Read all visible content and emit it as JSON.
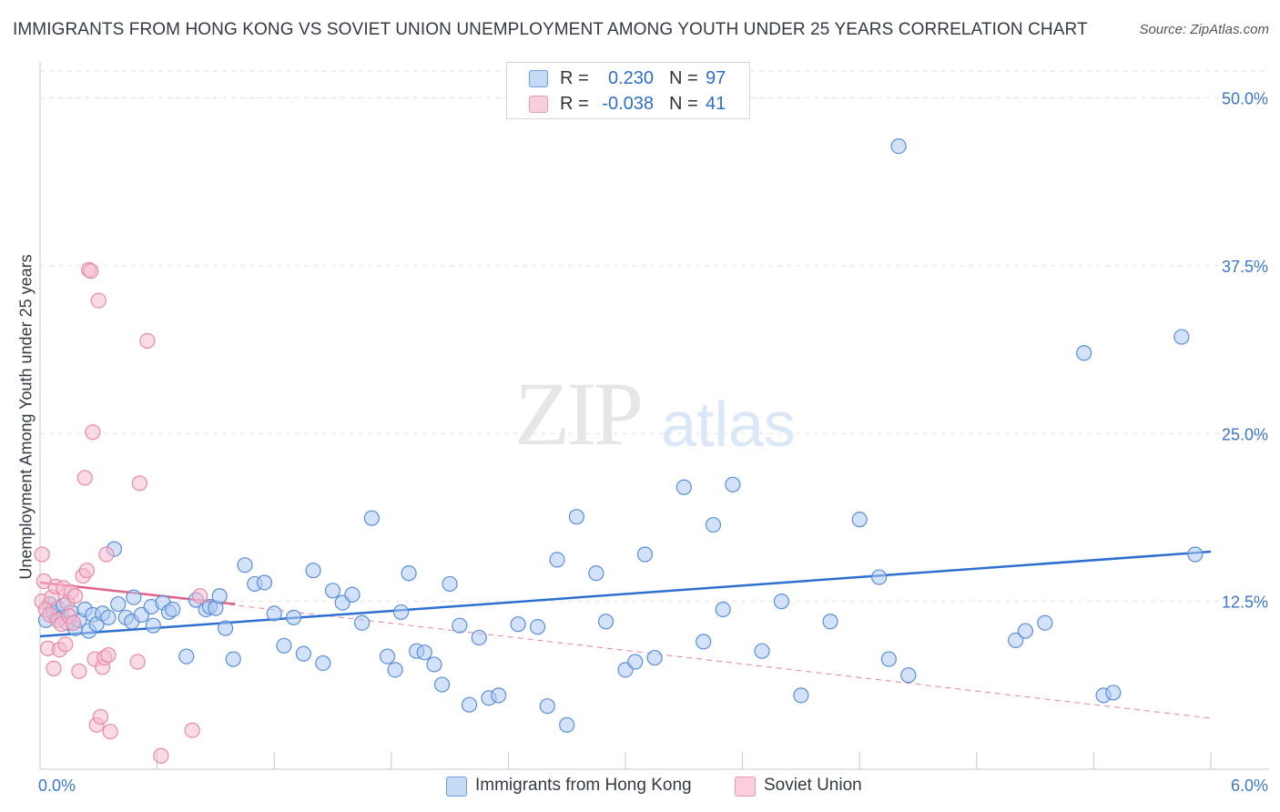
{
  "header": {
    "title": "IMMIGRANTS FROM HONG KONG VS SOVIET UNION UNEMPLOYMENT AMONG YOUTH UNDER 25 YEARS CORRELATION CHART",
    "source": "Source: ZipAtlas.com"
  },
  "watermark": {
    "zip": "ZIP",
    "atlas": "atlas"
  },
  "legend": {
    "r_label": "R =",
    "n_label": "N =",
    "rows": [
      {
        "name": "Immigrants from Hong Kong",
        "r": "0.230",
        "n": "97"
      },
      {
        "name": "Soviet Union",
        "r": "-0.038",
        "n": "41"
      }
    ]
  },
  "colors": {
    "blue_fill": "#aecbf2",
    "blue_stroke": "#5b8fd8",
    "blue_line": "#2d6fcf",
    "pink_fill": "#f6bccd",
    "pink_stroke": "#e88aa8",
    "pink_line": "#e0628a"
  },
  "chart_data": {
    "type": "scatter",
    "title": "IMMIGRANTS FROM HONG KONG VS SOVIET UNION UNEMPLOYMENT AMONG YOUTH UNDER 25 YEARS CORRELATION CHART",
    "xlabel": "",
    "ylabel": "Unemployment Among Youth under 25 years",
    "xlim": [
      0,
      6
    ],
    "ylim": [
      0,
      52
    ],
    "x_tick_labels": [
      "0.0%",
      "6.0%"
    ],
    "y_ticks": [
      12.5,
      25,
      37.5,
      50
    ],
    "y_tick_labels": [
      "12.5%",
      "25.0%",
      "37.5%",
      "50.0%"
    ],
    "grid": true,
    "series": [
      {
        "name": "Immigrants from Hong Kong",
        "trend": {
          "x": [
            0,
            6
          ],
          "y": [
            9.9,
            16.2
          ],
          "style": "solid"
        },
        "points": [
          [
            0.03,
            11.1
          ],
          [
            0.05,
            12.3
          ],
          [
            0.07,
            11.6
          ],
          [
            0.09,
            12.0
          ],
          [
            0.11,
            11.3
          ],
          [
            0.12,
            12.2
          ],
          [
            0.14,
            10.9
          ],
          [
            0.16,
            11.7
          ],
          [
            0.18,
            10.5
          ],
          [
            0.2,
            11.1
          ],
          [
            0.23,
            11.9
          ],
          [
            0.25,
            10.3
          ],
          [
            0.27,
            11.5
          ],
          [
            0.29,
            10.8
          ],
          [
            0.32,
            11.6
          ],
          [
            0.35,
            11.3
          ],
          [
            0.38,
            16.4
          ],
          [
            0.4,
            12.3
          ],
          [
            0.44,
            11.3
          ],
          [
            0.47,
            11.0
          ],
          [
            0.48,
            12.8
          ],
          [
            0.52,
            11.5
          ],
          [
            0.57,
            12.1
          ],
          [
            0.58,
            10.7
          ],
          [
            0.63,
            12.4
          ],
          [
            0.66,
            11.7
          ],
          [
            0.68,
            11.9
          ],
          [
            0.75,
            8.4
          ],
          [
            0.8,
            12.6
          ],
          [
            0.85,
            11.9
          ],
          [
            0.87,
            12.1
          ],
          [
            0.9,
            12.0
          ],
          [
            0.92,
            12.9
          ],
          [
            0.95,
            10.5
          ],
          [
            0.99,
            8.2
          ],
          [
            1.05,
            15.2
          ],
          [
            1.1,
            13.8
          ],
          [
            1.15,
            13.9
          ],
          [
            1.2,
            11.6
          ],
          [
            1.25,
            9.2
          ],
          [
            1.3,
            11.3
          ],
          [
            1.35,
            8.6
          ],
          [
            1.4,
            14.8
          ],
          [
            1.45,
            7.9
          ],
          [
            1.5,
            13.3
          ],
          [
            1.55,
            12.4
          ],
          [
            1.6,
            13.0
          ],
          [
            1.65,
            10.9
          ],
          [
            1.7,
            18.7
          ],
          [
            1.78,
            8.4
          ],
          [
            1.82,
            7.4
          ],
          [
            1.85,
            11.7
          ],
          [
            1.89,
            14.6
          ],
          [
            1.93,
            8.8
          ],
          [
            1.97,
            8.7
          ],
          [
            2.02,
            7.8
          ],
          [
            2.06,
            6.3
          ],
          [
            2.1,
            13.8
          ],
          [
            2.15,
            10.7
          ],
          [
            2.2,
            4.8
          ],
          [
            2.25,
            9.8
          ],
          [
            2.3,
            5.3
          ],
          [
            2.35,
            5.5
          ],
          [
            2.45,
            10.8
          ],
          [
            2.55,
            10.6
          ],
          [
            2.6,
            4.7
          ],
          [
            2.65,
            15.6
          ],
          [
            2.7,
            3.3
          ],
          [
            2.75,
            18.8
          ],
          [
            2.85,
            14.6
          ],
          [
            2.9,
            11.0
          ],
          [
            3.0,
            7.4
          ],
          [
            3.05,
            8.0
          ],
          [
            3.1,
            16.0
          ],
          [
            3.15,
            8.3
          ],
          [
            3.3,
            21.0
          ],
          [
            3.4,
            9.5
          ],
          [
            3.45,
            18.2
          ],
          [
            3.5,
            11.9
          ],
          [
            3.55,
            21.2
          ],
          [
            3.7,
            8.8
          ],
          [
            3.8,
            12.5
          ],
          [
            3.9,
            5.5
          ],
          [
            4.05,
            11.0
          ],
          [
            4.2,
            18.6
          ],
          [
            4.3,
            14.3
          ],
          [
            4.35,
            8.2
          ],
          [
            4.4,
            46.4
          ],
          [
            4.45,
            7.0
          ],
          [
            5.0,
            9.6
          ],
          [
            5.05,
            10.3
          ],
          [
            5.15,
            10.9
          ],
          [
            5.35,
            31.0
          ],
          [
            5.45,
            5.5
          ],
          [
            5.5,
            5.7
          ],
          [
            5.85,
            32.2
          ],
          [
            5.92,
            16.0
          ]
        ]
      },
      {
        "name": "Soviet Union",
        "trend": {
          "x": [
            0,
            1.0
          ],
          "y": [
            13.9,
            12.3
          ],
          "style": "solid"
        },
        "trend_extended": {
          "x": [
            0,
            6
          ],
          "y": [
            13.9,
            3.8
          ],
          "style": "dashed"
        },
        "points": [
          [
            0.01,
            16.0
          ],
          [
            0.01,
            12.5
          ],
          [
            0.02,
            14.0
          ],
          [
            0.03,
            11.9
          ],
          [
            0.04,
            9.0
          ],
          [
            0.05,
            11.5
          ],
          [
            0.06,
            12.8
          ],
          [
            0.07,
            7.5
          ],
          [
            0.08,
            13.6
          ],
          [
            0.09,
            11.1
          ],
          [
            0.1,
            8.9
          ],
          [
            0.11,
            10.8
          ],
          [
            0.12,
            13.5
          ],
          [
            0.13,
            9.3
          ],
          [
            0.14,
            12.4
          ],
          [
            0.15,
            11.4
          ],
          [
            0.16,
            13.2
          ],
          [
            0.17,
            10.9
          ],
          [
            0.18,
            12.9
          ],
          [
            0.2,
            7.3
          ],
          [
            0.22,
            14.4
          ],
          [
            0.23,
            21.7
          ],
          [
            0.24,
            14.8
          ],
          [
            0.25,
            37.2
          ],
          [
            0.26,
            37.1
          ],
          [
            0.27,
            25.1
          ],
          [
            0.28,
            8.2
          ],
          [
            0.29,
            3.3
          ],
          [
            0.3,
            34.9
          ],
          [
            0.31,
            3.9
          ],
          [
            0.32,
            7.6
          ],
          [
            0.33,
            8.3
          ],
          [
            0.34,
            16.0
          ],
          [
            0.35,
            8.5
          ],
          [
            0.36,
            2.8
          ],
          [
            0.5,
            8.0
          ],
          [
            0.51,
            21.3
          ],
          [
            0.55,
            31.9
          ],
          [
            0.62,
            1.0
          ],
          [
            0.78,
            2.9
          ],
          [
            0.82,
            12.9
          ]
        ]
      }
    ]
  }
}
